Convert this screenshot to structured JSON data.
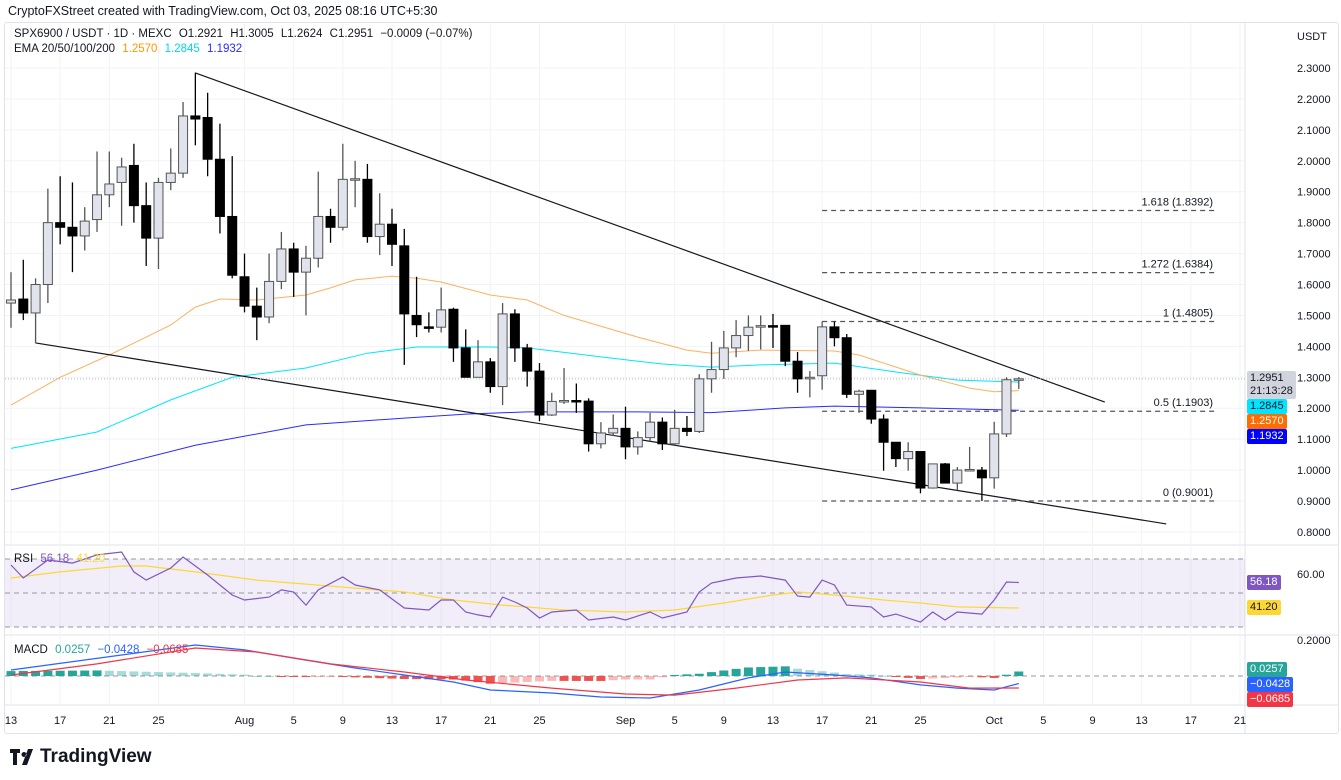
{
  "credit": "CryptoFXStreet created with TradingView.com, Oct 03, 2025 08:16 UTC+5:30",
  "legend": {
    "symbol": "SPX6900 / USDT · 1D · MEXC",
    "open": "O1.2921",
    "high": "H1.3005",
    "low": "L1.2624",
    "close": "C1.2951",
    "change": "−0.0009 (−0.07%)",
    "ema_label": "EMA 20/50/100/200",
    "ema_values": [
      "1.2570",
      "1.2845",
      "1.1932"
    ]
  },
  "currency": "USDT",
  "colors": {
    "ema50": "#ff9800",
    "ema100": "#00e5ff",
    "ema200": "#2a2aff",
    "bull_fill": "#e0e3eb",
    "bear_fill": "#000000",
    "rsi": "#7e57c2",
    "rsi_ma": "#fdd835",
    "macd": "#2962ff",
    "signal": "#f23645",
    "hist_up": "#26a69a",
    "hist_down": "#ef5350"
  },
  "price_axis": [
    "2.3000",
    "2.2000",
    "2.1000",
    "2.0000",
    "1.9000",
    "1.8000",
    "1.7000",
    "1.6000",
    "1.5000",
    "1.4000",
    "1.3000",
    "1.2000",
    "1.1000",
    "1.0000",
    "0.9000",
    "0.8000"
  ],
  "price_labels": {
    "last": "1.2951",
    "countdown": "21:13:28",
    "ema100": "1.2845",
    "ema50": "1.2570",
    "ema200": "1.1932"
  },
  "time_axis": [
    [
      "07-13",
      "13"
    ],
    [
      "07-17",
      "17"
    ],
    [
      "07-21",
      "21"
    ],
    [
      "07-25",
      "25"
    ],
    [
      "08-01",
      "Aug"
    ],
    [
      "08-05",
      "5"
    ],
    [
      "08-09",
      "9"
    ],
    [
      "08-13",
      "13"
    ],
    [
      "08-17",
      "17"
    ],
    [
      "08-21",
      "21"
    ],
    [
      "08-25",
      "25"
    ],
    [
      "09-01",
      "Sep"
    ],
    [
      "09-05",
      "5"
    ],
    [
      "09-09",
      "9"
    ],
    [
      "09-13",
      "13"
    ],
    [
      "09-17",
      "17"
    ],
    [
      "09-21",
      "21"
    ],
    [
      "09-25",
      "25"
    ],
    [
      "10-01",
      "Oct"
    ],
    [
      "10-05",
      "5"
    ],
    [
      "10-09",
      "9"
    ],
    [
      "10-13",
      "13"
    ],
    [
      "10-17",
      "17"
    ],
    [
      "10-21",
      "21"
    ]
  ],
  "candles": [
    [
      "07-13",
      1.54,
      1.64,
      1.46,
      1.55
    ],
    [
      "07-14",
      1.553,
      1.68,
      1.485,
      1.508
    ],
    [
      "07-15",
      1.508,
      1.62,
      1.41,
      1.6
    ],
    [
      "07-16",
      1.6,
      1.91,
      1.54,
      1.8
    ],
    [
      "07-17",
      1.8,
      1.95,
      1.73,
      1.785
    ],
    [
      "07-18",
      1.785,
      1.93,
      1.64,
      1.757
    ],
    [
      "07-19",
      1.757,
      1.85,
      1.71,
      1.805
    ],
    [
      "07-20",
      1.81,
      2.03,
      1.77,
      1.89
    ],
    [
      "07-21",
      1.89,
      2.03,
      1.85,
      1.925
    ],
    [
      "07-22",
      1.93,
      2.01,
      1.79,
      1.98
    ],
    [
      "07-23",
      1.985,
      2.055,
      1.8,
      1.855
    ],
    [
      "07-24",
      1.855,
      1.93,
      1.66,
      1.75
    ],
    [
      "07-25",
      1.75,
      1.945,
      1.65,
      1.93
    ],
    [
      "07-26",
      1.93,
      2.04,
      1.905,
      1.96
    ],
    [
      "07-27",
      1.96,
      2.19,
      1.945,
      2.145
    ],
    [
      "07-28",
      2.145,
      2.285,
      2.05,
      2.135
    ],
    [
      "07-29",
      2.14,
      2.22,
      1.95,
      2.005
    ],
    [
      "07-30",
      2.005,
      2.12,
      1.765,
      1.82
    ],
    [
      "07-31",
      1.82,
      2.015,
      1.62,
      1.63
    ],
    [
      "08-01",
      1.625,
      1.7,
      1.51,
      1.53
    ],
    [
      "08-02",
      1.53,
      1.59,
      1.42,
      1.495
    ],
    [
      "08-03",
      1.495,
      1.7,
      1.475,
      1.61
    ],
    [
      "08-04",
      1.61,
      1.77,
      1.585,
      1.715
    ],
    [
      "08-05",
      1.715,
      1.735,
      1.56,
      1.64
    ],
    [
      "08-06",
      1.64,
      1.725,
      1.5,
      1.685
    ],
    [
      "08-07",
      1.685,
      1.965,
      1.655,
      1.82
    ],
    [
      "08-08",
      1.82,
      1.845,
      1.735,
      1.785
    ],
    [
      "08-09",
      1.785,
      2.055,
      1.775,
      1.94
    ],
    [
      "08-10",
      1.94,
      2.0,
      1.85,
      1.942
    ],
    [
      "08-11",
      1.94,
      1.99,
      1.735,
      1.755
    ],
    [
      "08-12",
      1.755,
      1.895,
      1.695,
      1.795
    ],
    [
      "08-13",
      1.795,
      1.845,
      1.66,
      1.73
    ],
    [
      "08-14",
      1.725,
      1.78,
      1.34,
      1.505
    ],
    [
      "08-15",
      1.5,
      1.625,
      1.43,
      1.47
    ],
    [
      "08-16",
      1.463,
      1.51,
      1.445,
      1.462
    ],
    [
      "08-17",
      1.462,
      1.59,
      1.445,
      1.518
    ],
    [
      "08-18",
      1.52,
      1.525,
      1.35,
      1.395
    ],
    [
      "08-19",
      1.395,
      1.455,
      1.3,
      1.3
    ],
    [
      "08-20",
      1.3,
      1.42,
      1.3,
      1.35
    ],
    [
      "08-21",
      1.35,
      1.362,
      1.25,
      1.27
    ],
    [
      "08-22",
      1.27,
      1.54,
      1.21,
      1.505
    ],
    [
      "08-23",
      1.505,
      1.52,
      1.35,
      1.395
    ],
    [
      "08-24",
      1.395,
      1.408,
      1.27,
      1.32
    ],
    [
      "08-25",
      1.32,
      1.346,
      1.158,
      1.178
    ],
    [
      "08-26",
      1.178,
      1.25,
      1.175,
      1.222
    ],
    [
      "08-27",
      1.223,
      1.33,
      1.214,
      1.225
    ],
    [
      "08-28",
      1.225,
      1.28,
      1.185,
      1.223
    ],
    [
      "08-29",
      1.223,
      1.232,
      1.06,
      1.085
    ],
    [
      "08-30",
      1.085,
      1.155,
      1.07,
      1.12
    ],
    [
      "08-31",
      1.12,
      1.18,
      1.11,
      1.135
    ],
    [
      "09-01",
      1.135,
      1.205,
      1.035,
      1.075
    ],
    [
      "09-02",
      1.075,
      1.125,
      1.05,
      1.105
    ],
    [
      "09-03",
      1.105,
      1.185,
      1.095,
      1.155
    ],
    [
      "09-04",
      1.155,
      1.17,
      1.065,
      1.085
    ],
    [
      "09-05",
      1.085,
      1.195,
      1.08,
      1.135
    ],
    [
      "09-06",
      1.135,
      1.175,
      1.11,
      1.125
    ],
    [
      "09-07",
      1.125,
      1.31,
      1.12,
      1.295
    ],
    [
      "09-08",
      1.295,
      1.415,
      1.25,
      1.325
    ],
    [
      "09-09",
      1.325,
      1.45,
      1.295,
      1.395
    ],
    [
      "09-10",
      1.395,
      1.485,
      1.365,
      1.435
    ],
    [
      "09-11",
      1.435,
      1.5,
      1.385,
      1.462
    ],
    [
      "09-12",
      1.465,
      1.5,
      1.39,
      1.467
    ],
    [
      "09-13",
      1.467,
      1.505,
      1.395,
      1.465
    ],
    [
      "09-14",
      1.468,
      1.468,
      1.336,
      1.352
    ],
    [
      "09-15",
      1.352,
      1.382,
      1.25,
      1.295
    ],
    [
      "09-16",
      1.3,
      1.32,
      1.235,
      1.3
    ],
    [
      "09-17",
      1.305,
      1.48,
      1.26,
      1.463
    ],
    [
      "09-18",
      1.463,
      1.48,
      1.4,
      1.428
    ],
    [
      "09-19",
      1.428,
      1.44,
      1.233,
      1.245
    ],
    [
      "09-20",
      1.245,
      1.26,
      1.185,
      1.255
    ],
    [
      "09-21",
      1.258,
      1.258,
      1.15,
      1.165
    ],
    [
      "09-22",
      1.165,
      1.18,
      0.998,
      1.09
    ],
    [
      "09-23",
      1.09,
      1.09,
      1.01,
      1.037
    ],
    [
      "09-24",
      1.037,
      1.09,
      0.998,
      1.06
    ],
    [
      "09-25",
      1.06,
      1.06,
      0.925,
      0.942
    ],
    [
      "09-26",
      0.942,
      1.02,
      0.94,
      1.02
    ],
    [
      "09-27",
      1.02,
      1.023,
      0.958,
      0.958
    ],
    [
      "09-28",
      0.958,
      1.01,
      0.935,
      1.0
    ],
    [
      "09-29",
      1.0,
      1.075,
      0.998,
      1.002
    ],
    [
      "09-30",
      1.0,
      1.01,
      0.9,
      0.975
    ],
    [
      "10-01",
      0.975,
      1.156,
      0.94,
      1.117
    ],
    [
      "10-02",
      1.117,
      1.3,
      1.107,
      1.2921
    ],
    [
      "10-03",
      1.2921,
      1.3005,
      1.2624,
      1.2951
    ]
  ],
  "ema": {
    "ema50": [
      [
        "07-13",
        1.21
      ],
      [
        "07-17",
        1.3
      ],
      [
        "07-21",
        1.372
      ],
      [
        "07-24",
        1.43
      ],
      [
        "07-26",
        1.469
      ],
      [
        "07-28",
        1.527
      ],
      [
        "07-30",
        1.553
      ],
      [
        "08-02",
        1.55
      ],
      [
        "08-06",
        1.566
      ],
      [
        "08-08",
        1.589
      ],
      [
        "08-10",
        1.615
      ],
      [
        "08-13",
        1.627
      ],
      [
        "08-15",
        1.62
      ],
      [
        "08-17",
        1.608
      ],
      [
        "08-21",
        1.566
      ],
      [
        "08-24",
        1.55
      ],
      [
        "08-27",
        1.5
      ],
      [
        "09-02",
        1.43
      ],
      [
        "09-06",
        1.388
      ],
      [
        "09-08",
        1.378
      ],
      [
        "09-12",
        1.388
      ],
      [
        "09-18",
        1.385
      ],
      [
        "09-20",
        1.372
      ],
      [
        "09-25",
        1.307
      ],
      [
        "09-29",
        1.265
      ],
      [
        "10-01",
        1.253
      ],
      [
        "10-03",
        1.257
      ]
    ],
    "ema100": [
      [
        "07-13",
        1.07
      ],
      [
        "07-20",
        1.123
      ],
      [
        "07-26",
        1.227
      ],
      [
        "07-31",
        1.3
      ],
      [
        "08-06",
        1.33
      ],
      [
        "08-11",
        1.378
      ],
      [
        "08-15",
        1.398
      ],
      [
        "08-21",
        1.398
      ],
      [
        "08-24",
        1.395
      ],
      [
        "08-30",
        1.366
      ],
      [
        "09-04",
        1.343
      ],
      [
        "09-08",
        1.333
      ],
      [
        "09-12",
        1.34
      ],
      [
        "09-18",
        1.346
      ],
      [
        "09-23",
        1.317
      ],
      [
        "09-28",
        1.291
      ],
      [
        "10-03",
        1.2845
      ]
    ],
    "ema200": [
      [
        "07-13",
        0.936
      ],
      [
        "07-20",
        1.0
      ],
      [
        "07-28",
        1.08
      ],
      [
        "08-06",
        1.146
      ],
      [
        "08-14",
        1.168
      ],
      [
        "08-19",
        1.181
      ],
      [
        "08-24",
        1.188
      ],
      [
        "09-02",
        1.188
      ],
      [
        "09-08",
        1.186
      ],
      [
        "09-14",
        1.201
      ],
      [
        "09-18",
        1.207
      ],
      [
        "09-25",
        1.201
      ],
      [
        "10-03",
        1.1932
      ]
    ]
  },
  "trendlines": [
    [
      [
        "07-28",
        2.284
      ],
      [
        "10-10",
        1.22
      ]
    ],
    [
      [
        "07-15",
        1.411
      ],
      [
        "10-15",
        0.826
      ]
    ]
  ],
  "fib": {
    "from": "09-17",
    "levels": [
      {
        "value": 1.8392,
        "label": "1.618 (1.8392)"
      },
      {
        "value": 1.6384,
        "label": "1.272 (1.6384)"
      },
      {
        "value": 1.4805,
        "label": "1 (1.4805)"
      },
      {
        "value": 1.1903,
        "label": "0.5 (1.1903)"
      },
      {
        "value": 0.9001,
        "label": "0 (0.9001)"
      }
    ]
  },
  "rsi": {
    "label": "RSI",
    "value": "56.18",
    "ma_value": "41.20",
    "axis_label": "60.00",
    "upper": 70,
    "middle": 50,
    "lower": 30,
    "line": [
      [
        "07-13",
        66.5
      ],
      [
        "07-14",
        58.8
      ],
      [
        "07-16",
        69.4
      ],
      [
        "07-18",
        67.6
      ],
      [
        "07-20",
        72.4
      ],
      [
        "07-22",
        74.1
      ],
      [
        "07-23",
        62.4
      ],
      [
        "07-24",
        57.6
      ],
      [
        "07-26",
        64.7
      ],
      [
        "07-27",
        71.2
      ],
      [
        "07-29",
        60.6
      ],
      [
        "07-31",
        48.8
      ],
      [
        "08-01",
        45.9
      ],
      [
        "08-03",
        47.6
      ],
      [
        "08-04",
        51.8
      ],
      [
        "08-05",
        50.6
      ],
      [
        "08-06",
        42.9
      ],
      [
        "08-07",
        51.8
      ],
      [
        "08-09",
        59.4
      ],
      [
        "08-10",
        54.7
      ],
      [
        "08-12",
        51.8
      ],
      [
        "08-14",
        41.2
      ],
      [
        "08-16",
        40
      ],
      [
        "08-17",
        45.9
      ],
      [
        "08-18",
        45.9
      ],
      [
        "08-19",
        38.8
      ],
      [
        "08-20",
        37.1
      ],
      [
        "08-21",
        35.9
      ],
      [
        "08-22",
        47.6
      ],
      [
        "08-23",
        44.7
      ],
      [
        "08-24",
        41.2
      ],
      [
        "08-25",
        35.3
      ],
      [
        "08-26",
        38.8
      ],
      [
        "08-28",
        40
      ],
      [
        "08-29",
        34.1
      ],
      [
        "08-31",
        35.9
      ],
      [
        "09-01",
        34.1
      ],
      [
        "09-03",
        38.8
      ],
      [
        "09-04",
        35.3
      ],
      [
        "09-06",
        38.8
      ],
      [
        "09-07",
        50.6
      ],
      [
        "09-08",
        55.9
      ],
      [
        "09-10",
        58.8
      ],
      [
        "09-12",
        60
      ],
      [
        "09-14",
        57.6
      ],
      [
        "09-15",
        48.2
      ],
      [
        "09-16",
        47.6
      ],
      [
        "09-17",
        57.6
      ],
      [
        "09-18",
        54.7
      ],
      [
        "09-19",
        42.9
      ],
      [
        "09-21",
        41.8
      ],
      [
        "09-22",
        35.9
      ],
      [
        "09-23",
        37.6
      ],
      [
        "09-25",
        32.9
      ],
      [
        "09-26",
        38.8
      ],
      [
        "09-27",
        34.1
      ],
      [
        "09-28",
        38.8
      ],
      [
        "09-30",
        37.6
      ],
      [
        "10-01",
        45.9
      ],
      [
        "10-02",
        56.5
      ],
      [
        "10-03",
        56.18
      ]
    ],
    "ma": [
      [
        "07-13",
        58.8
      ],
      [
        "07-17",
        62.4
      ],
      [
        "07-22",
        65.9
      ],
      [
        "07-24",
        65.9
      ],
      [
        "07-28",
        62.4
      ],
      [
        "08-02",
        57.6
      ],
      [
        "08-10",
        52.9
      ],
      [
        "08-14",
        50.6
      ],
      [
        "08-18",
        45.9
      ],
      [
        "08-22",
        42.9
      ],
      [
        "08-27",
        40
      ],
      [
        "09-01",
        38.8
      ],
      [
        "09-05",
        40
      ],
      [
        "09-09",
        44.1
      ],
      [
        "09-13",
        48.8
      ],
      [
        "09-15",
        50.6
      ],
      [
        "09-18",
        48.8
      ],
      [
        "09-22",
        45.9
      ],
      [
        "09-25",
        44.1
      ],
      [
        "09-28",
        41.8
      ],
      [
        "10-03",
        41.2
      ]
    ]
  },
  "macd": {
    "label": "MACD",
    "hist_value": "0.0257",
    "macd_value": "−0.0428",
    "signal_value": "−0.0685",
    "axis_label": "0.2000",
    "macd_line": [
      [
        "07-13",
        0.034
      ],
      [
        "07-28",
        0.177
      ],
      [
        "08-01",
        0.149
      ],
      [
        "08-06",
        0.091
      ],
      [
        "08-10",
        0.046
      ],
      [
        "08-14",
        0.006
      ],
      [
        "08-18",
        -0.034
      ],
      [
        "08-21",
        -0.08
      ],
      [
        "08-26",
        -0.097
      ],
      [
        "08-30",
        -0.12
      ],
      [
        "09-03",
        -0.126
      ],
      [
        "09-07",
        -0.08
      ],
      [
        "09-11",
        -0.011
      ],
      [
        "09-14",
        0.023
      ],
      [
        "09-18",
        0.006
      ],
      [
        "09-21",
        -0.011
      ],
      [
        "09-25",
        -0.051
      ],
      [
        "09-28",
        -0.069
      ],
      [
        "10-01",
        -0.08
      ],
      [
        "10-03",
        -0.0428
      ]
    ],
    "signal_line": [
      [
        "07-13",
        0.006
      ],
      [
        "07-20",
        0.069
      ],
      [
        "07-28",
        0.16
      ],
      [
        "08-02",
        0.137
      ],
      [
        "08-08",
        0.069
      ],
      [
        "08-14",
        0.023
      ],
      [
        "08-19",
        -0.023
      ],
      [
        "08-26",
        -0.069
      ],
      [
        "09-01",
        -0.103
      ],
      [
        "09-05",
        -0.109
      ],
      [
        "09-10",
        -0.069
      ],
      [
        "09-15",
        -0.023
      ],
      [
        "09-19",
        -0.011
      ],
      [
        "09-25",
        -0.034
      ],
      [
        "09-29",
        -0.069
      ],
      [
        "10-03",
        -0.0685
      ]
    ]
  },
  "logo": "TradingView"
}
